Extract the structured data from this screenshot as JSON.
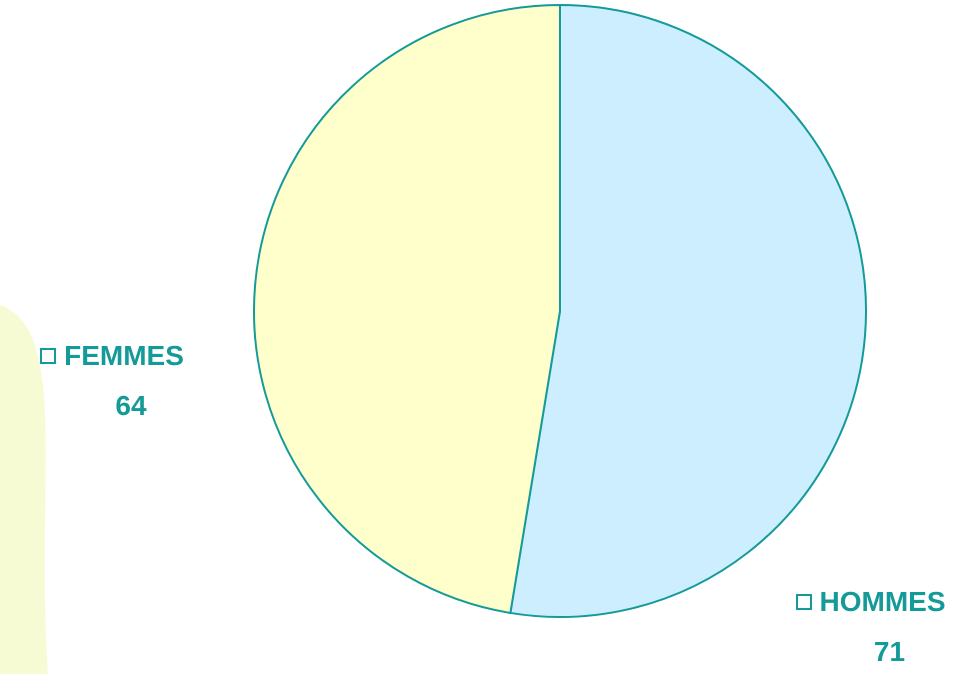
{
  "chart_data": {
    "type": "pie",
    "title": "",
    "slices": [
      {
        "label": "HOMMES",
        "value": 71,
        "color": "#cdeeff"
      },
      {
        "label": "FEMMES",
        "value": 64,
        "color": "#ffffcc"
      }
    ],
    "outline_color": "#159a9a",
    "start_angle": "12 o'clock",
    "direction": "clockwise",
    "grid": false,
    "legend": "inline labels next to slices"
  },
  "labels": {
    "femmes_name": "FEMMES",
    "femmes_value": "64",
    "hommes_name": "HOMMES",
    "hommes_value": "71"
  },
  "colors": {
    "accent": "#159a9a",
    "background_arc": "#f7fbd4"
  }
}
